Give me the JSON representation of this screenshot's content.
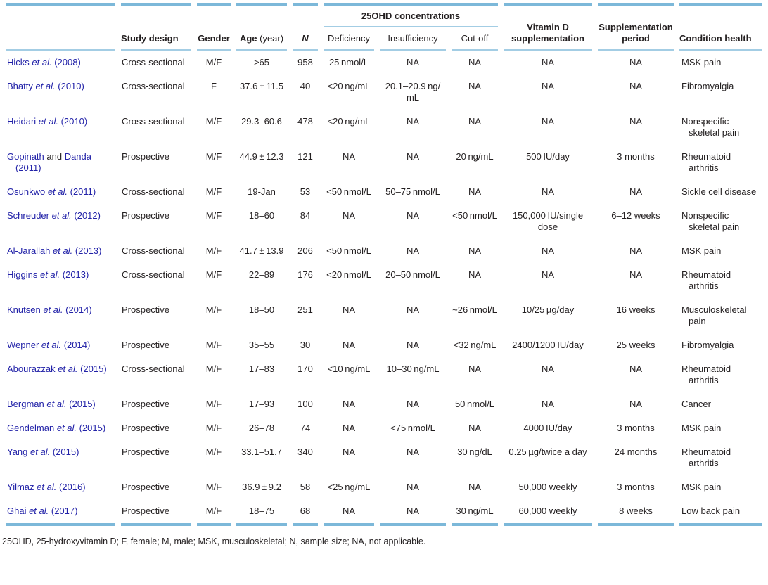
{
  "colors": {
    "accent_bar": "#7cb8d9",
    "rule": "#a3cde4",
    "link": "#2222a8",
    "text": "#231f20"
  },
  "table": {
    "group_header": "25OHD concentrations",
    "columns": [
      {
        "key": "study",
        "label": ""
      },
      {
        "key": "design",
        "label": "Study design"
      },
      {
        "key": "gender",
        "label": "Gender"
      },
      {
        "key": "age",
        "label": "Age",
        "suffix": " (year)"
      },
      {
        "key": "n",
        "label": "N"
      },
      {
        "key": "deficiency",
        "label": "Deficiency"
      },
      {
        "key": "insufficiency",
        "label": "Insufficiency"
      },
      {
        "key": "cutoff",
        "label": "Cut-off"
      },
      {
        "key": "vitd",
        "label": "Vitamin D supplementation"
      },
      {
        "key": "period",
        "label": "Supplementation period"
      },
      {
        "key": "condition",
        "label": "Condition health"
      }
    ],
    "rows": [
      {
        "study": [
          {
            "t": "Hicks ",
            "s": "l"
          },
          {
            "t": "et al.",
            "s": "li"
          },
          {
            "t": " (2008)",
            "s": "l"
          }
        ],
        "design": "Cross-sectional",
        "gender": "M/F",
        "age": ">65",
        "n": "958",
        "deficiency": "25 nmol/L",
        "insufficiency": "NA",
        "cutoff": "NA",
        "vitd": "NA",
        "period": "NA",
        "condition": "MSK pain"
      },
      {
        "study": [
          {
            "t": "Bhatty ",
            "s": "l"
          },
          {
            "t": "et al.",
            "s": "li"
          },
          {
            "t": " (2010)",
            "s": "l"
          }
        ],
        "design": "Cross-sectional",
        "gender": "F",
        "age": "37.6 ± 11.5",
        "n": "40",
        "deficiency": "<20 ng/mL",
        "insufficiency": "20.1–20.9 ng/\nmL",
        "cutoff": "NA",
        "vitd": "NA",
        "period": "NA",
        "condition": "Fibromyalgia"
      },
      {
        "study": [
          {
            "t": "Heidari ",
            "s": "l"
          },
          {
            "t": "et al.",
            "s": "li"
          },
          {
            "t": " (2010)",
            "s": "l"
          }
        ],
        "design": "Cross-sectional",
        "gender": "M/F",
        "age": "29.3–60.6",
        "n": "478",
        "deficiency": "<20 ng/mL",
        "insufficiency": "NA",
        "cutoff": "NA",
        "vitd": "NA",
        "period": "NA",
        "condition": "Nonspecific skeletal pain"
      },
      {
        "study": [
          {
            "t": "Gopinath ",
            "s": "l"
          },
          {
            "t": "and",
            "s": "p"
          },
          {
            "t": " Danda (2011)",
            "s": "l"
          }
        ],
        "design": "Prospective",
        "gender": "M/F",
        "age": "44.9 ± 12.3",
        "n": "121",
        "deficiency": "NA",
        "insufficiency": "NA",
        "cutoff": "20 ng/mL",
        "vitd": "500 IU/day",
        "period": "3 months",
        "condition": "Rheumatoid arthritis"
      },
      {
        "study": [
          {
            "t": "Osunkwo ",
            "s": "l"
          },
          {
            "t": "et al.",
            "s": "li"
          },
          {
            "t": " (2011)",
            "s": "l"
          }
        ],
        "design": "Cross-sectional",
        "gender": "M/F",
        "age": "19-Jan",
        "n": "53",
        "deficiency": "<50 nmol/L",
        "insufficiency": "50–75 nmol/L",
        "cutoff": "NA",
        "vitd": "NA",
        "period": "NA",
        "condition": "Sickle cell disease"
      },
      {
        "study": [
          {
            "t": "Schreuder ",
            "s": "l"
          },
          {
            "t": "et al.",
            "s": "li"
          },
          {
            "t": " (2012)",
            "s": "l"
          }
        ],
        "design": "Prospective",
        "gender": "M/F",
        "age": "18–60",
        "n": "84",
        "deficiency": "NA",
        "insufficiency": "NA",
        "cutoff": "<50 nmol/L",
        "vitd": "150,000 IU/single dose",
        "period": "6–12 weeks",
        "condition": "Nonspecific skeletal pain"
      },
      {
        "study": [
          {
            "t": "Al-Jarallah ",
            "s": "l"
          },
          {
            "t": "et al.",
            "s": "li"
          },
          {
            "t": " (2013)",
            "s": "l"
          }
        ],
        "design": "Cross-sectional",
        "gender": "M/F",
        "age": "41.7 ± 13.9",
        "n": "206",
        "deficiency": "<50 nmol/L",
        "insufficiency": "NA",
        "cutoff": "NA",
        "vitd": "NA",
        "period": "NA",
        "condition": "MSK pain"
      },
      {
        "study": [
          {
            "t": "Higgins ",
            "s": "l"
          },
          {
            "t": "et al.",
            "s": "li"
          },
          {
            "t": " (2013)",
            "s": "l"
          }
        ],
        "design": "Cross-sectional",
        "gender": "M/F",
        "age": "22–89",
        "n": "176",
        "deficiency": "<20 nmol/L",
        "insufficiency": "20–50 nmol/L",
        "cutoff": "NA",
        "vitd": "NA",
        "period": "NA",
        "condition": "Rheumatoid arthritis"
      },
      {
        "study": [
          {
            "t": "Knutsen ",
            "s": "l"
          },
          {
            "t": "et al.",
            "s": "li"
          },
          {
            "t": " (2014)",
            "s": "l"
          }
        ],
        "design": "Prospective",
        "gender": "M/F",
        "age": "18–50",
        "n": "251",
        "deficiency": "NA",
        "insufficiency": "NA",
        "cutoff": "~26 nmol/L",
        "vitd": "10/25 µg/day",
        "period": "16 weeks",
        "condition": "Musculoskeletal pain"
      },
      {
        "study": [
          {
            "t": "Wepner ",
            "s": "l"
          },
          {
            "t": "et al.",
            "s": "li"
          },
          {
            "t": " (2014)",
            "s": "l"
          }
        ],
        "design": "Prospective",
        "gender": "M/F",
        "age": "35–55",
        "n": "30",
        "deficiency": "NA",
        "insufficiency": "NA",
        "cutoff": "<32 ng/mL",
        "vitd": "2400/1200 IU/day",
        "period": "25 weeks",
        "condition": "Fibromyalgia"
      },
      {
        "study": [
          {
            "t": "Abourazzak ",
            "s": "l"
          },
          {
            "t": "et al.",
            "s": "li"
          },
          {
            "t": " (2015)",
            "s": "l"
          }
        ],
        "design": "Cross-sectional",
        "gender": "M/F",
        "age": "17–83",
        "n": "170",
        "deficiency": "<10 ng/mL",
        "insufficiency": "10–30 ng/mL",
        "cutoff": "NA",
        "vitd": "NA",
        "period": "NA",
        "condition": "Rheumatoid arthritis"
      },
      {
        "study": [
          {
            "t": "Bergman ",
            "s": "l"
          },
          {
            "t": "et al.",
            "s": "li"
          },
          {
            "t": " (2015)",
            "s": "l"
          }
        ],
        "design": "Prospective",
        "gender": "M/F",
        "age": "17–93",
        "n": "100",
        "deficiency": "NA",
        "insufficiency": "NA",
        "cutoff": "50 nmol/L",
        "vitd": "NA",
        "period": "NA",
        "condition": "Cancer"
      },
      {
        "study": [
          {
            "t": "Gendelman ",
            "s": "l"
          },
          {
            "t": "et al.",
            "s": "li"
          },
          {
            "t": " (2015)",
            "s": "l"
          }
        ],
        "design": "Prospective",
        "gender": "M/F",
        "age": "26–78",
        "n": "74",
        "deficiency": "NA",
        "insufficiency": "<75 nmol/L",
        "cutoff": "NA",
        "vitd": "4000 IU/day",
        "period": "3 months",
        "condition": "MSK pain"
      },
      {
        "study": [
          {
            "t": "Yang ",
            "s": "l"
          },
          {
            "t": "et al.",
            "s": "li"
          },
          {
            "t": " (2015)",
            "s": "l"
          }
        ],
        "design": "Prospective",
        "gender": "M/F",
        "age": "33.1–51.7",
        "n": "340",
        "deficiency": "NA",
        "insufficiency": "NA",
        "cutoff": "30 ng/dL",
        "vitd": "0.25 µg/twice a day",
        "period": "24 months",
        "condition": "Rheumatoid arthritis"
      },
      {
        "study": [
          {
            "t": "Yilmaz ",
            "s": "l"
          },
          {
            "t": "et al.",
            "s": "li"
          },
          {
            "t": " (2016)",
            "s": "l"
          }
        ],
        "design": "Prospective",
        "gender": "M/F",
        "age": "36.9 ± 9.2",
        "n": "58",
        "deficiency": "<25 ng/mL",
        "insufficiency": "NA",
        "cutoff": "NA",
        "vitd": "50,000 weekly",
        "period": "3 months",
        "condition": "MSK pain"
      },
      {
        "study": [
          {
            "t": "Ghai ",
            "s": "l"
          },
          {
            "t": "et al.",
            "s": "li"
          },
          {
            "t": " (2017)",
            "s": "l"
          }
        ],
        "design": "Prospective",
        "gender": "M/F",
        "age": "18–75",
        "n": "68",
        "deficiency": "NA",
        "insufficiency": "NA",
        "cutoff": "30 ng/mL",
        "vitd": "60,000 weekly",
        "period": "8 weeks",
        "condition": "Low back pain"
      }
    ]
  },
  "footnote": "25OHD, 25-hydroxyvitamin D; F, female; M, male; MSK, musculoskeletal; N, sample size; NA, not applicable."
}
